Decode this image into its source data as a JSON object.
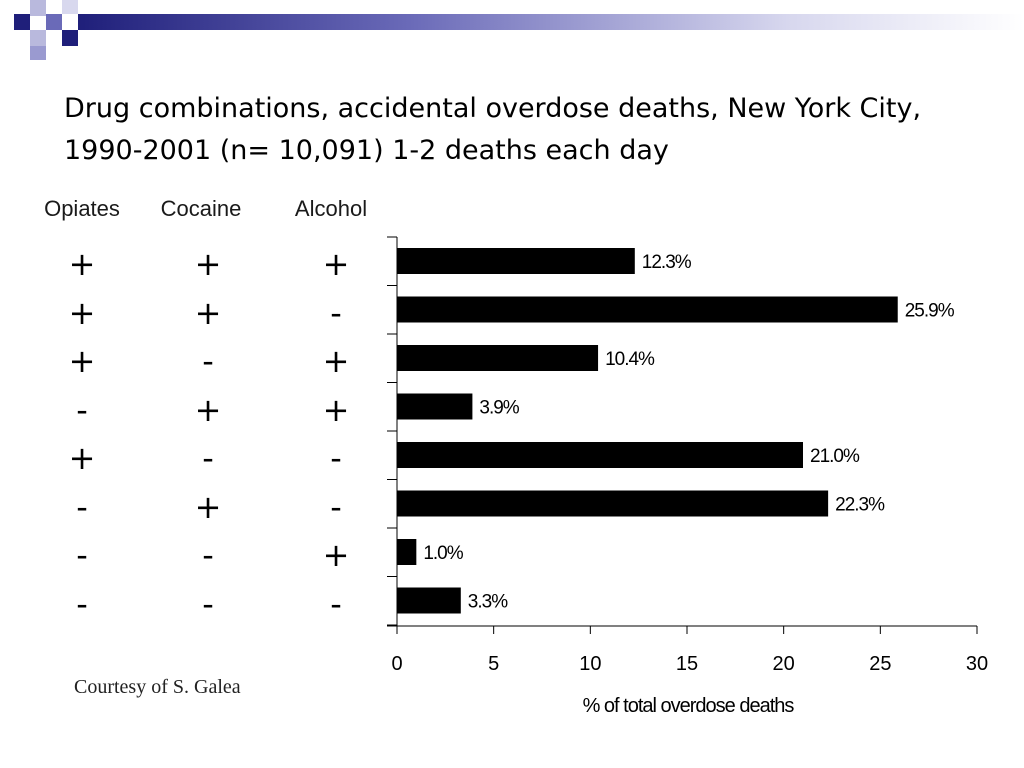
{
  "slide": {
    "title": "Drug combinations, accidental overdose deaths, New York City, 1990-2001 (n= 10,091) 1-2 deaths each day",
    "credit": "Courtesy of S. Galea",
    "accent_colors": [
      "#1f1f7a",
      "#6a6ab8",
      "#b9b9dd"
    ]
  },
  "table": {
    "headers": [
      "Opiates",
      "Cocaine",
      "Alcohol"
    ],
    "rows": [
      [
        "+",
        "+",
        "+"
      ],
      [
        "+",
        "+",
        "-"
      ],
      [
        "+",
        "-",
        "+"
      ],
      [
        "-",
        "+",
        "+"
      ],
      [
        "+",
        "-",
        "-"
      ],
      [
        "-",
        "+",
        "-"
      ],
      [
        "-",
        "-",
        "+"
      ],
      [
        "-",
        "-",
        "-"
      ]
    ]
  },
  "chart_data": {
    "type": "bar",
    "orientation": "horizontal",
    "values": [
      12.3,
      25.9,
      10.4,
      3.9,
      21.0,
      22.3,
      1.0,
      3.3
    ],
    "data_labels": [
      "12.3%",
      "25.9%",
      "10.4%",
      "3.9%",
      "21.0%",
      "22.3%",
      "1.0%",
      "3.3%"
    ],
    "xlabel": "% of total overdose deaths",
    "xlim": [
      0,
      30
    ],
    "xticks": [
      0,
      5,
      10,
      15,
      20,
      25,
      30
    ],
    "bar_color": "#000000",
    "grid": false
  }
}
